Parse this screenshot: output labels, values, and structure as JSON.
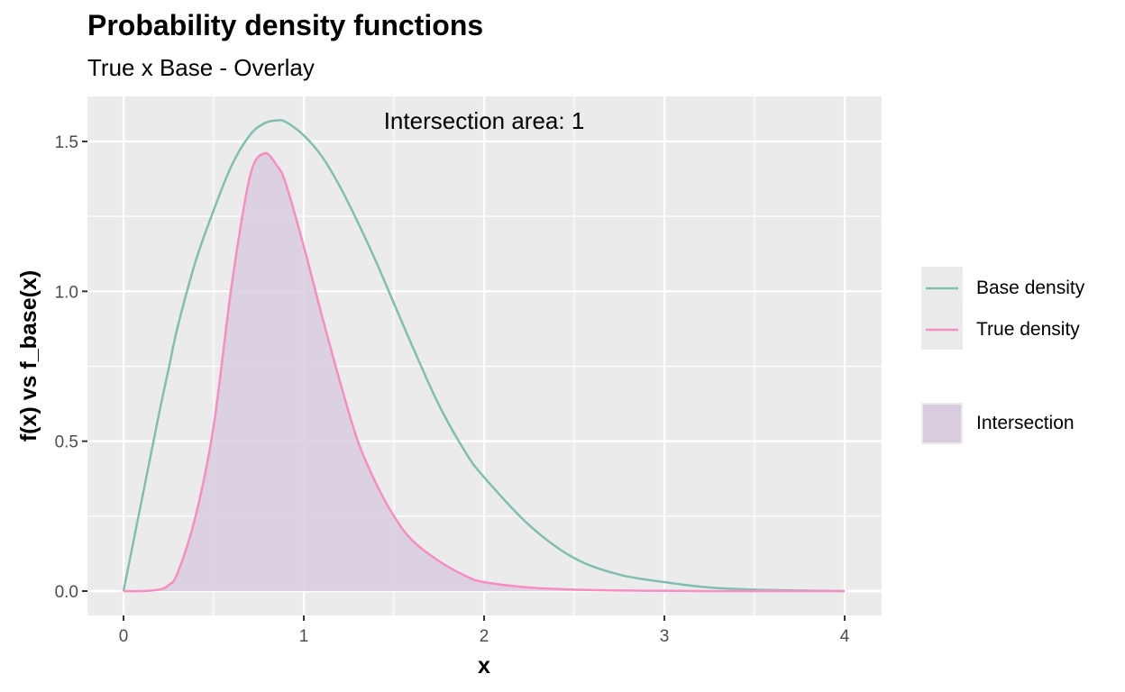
{
  "title": "Probability density functions",
  "subtitle": "True x Base - Overlay",
  "annotation": "Intersection area:  1",
  "legend": {
    "items": [
      {
        "label": "Base density",
        "type": "line",
        "color": "#7fbfb2"
      },
      {
        "label": "True density",
        "type": "line",
        "color": "#f78dc1"
      },
      {
        "label": "Intersection",
        "type": "fill",
        "color": "#d9ccdf"
      }
    ]
  },
  "axes": {
    "xlabel": "x",
    "ylabel": "f(x) vs f_base(x)",
    "xticks": [
      "0",
      "1",
      "2",
      "3",
      "4"
    ],
    "yticks": [
      "0.0",
      "0.5",
      "1.0",
      "1.5"
    ]
  },
  "colors": {
    "panel": "#ebebeb",
    "grid": "#ffffff",
    "base": "#7fbfb2",
    "true": "#f78dc1",
    "intersection": "#d9ccdf"
  },
  "chart_data": {
    "type": "line",
    "title": "Probability density functions",
    "subtitle": "True x Base - Overlay",
    "xlabel": "x",
    "ylabel": "f(x) vs f_base(x)",
    "xlim": [
      -0.2,
      4.2
    ],
    "ylim": [
      -0.08,
      1.65
    ],
    "grid": true,
    "legend_position": "right",
    "annotations": [
      "Intersection area:  1"
    ],
    "x": [
      0,
      0.1,
      0.2,
      0.25,
      0.3,
      0.4,
      0.5,
      0.6,
      0.7,
      0.78,
      0.85,
      0.9,
      1.0,
      1.1,
      1.2,
      1.3,
      1.4,
      1.5,
      1.6,
      1.75,
      1.9,
      2.0,
      2.25,
      2.5,
      2.75,
      3.0,
      3.25,
      3.5,
      3.75,
      4.0
    ],
    "series": [
      {
        "name": "Base density",
        "values": [
          0,
          0.3,
          0.6,
          0.74,
          0.88,
          1.1,
          1.27,
          1.42,
          1.52,
          1.56,
          1.57,
          1.565,
          1.52,
          1.45,
          1.35,
          1.23,
          1.1,
          0.96,
          0.82,
          0.62,
          0.46,
          0.38,
          0.22,
          0.11,
          0.055,
          0.03,
          0.012,
          0.005,
          0.002,
          0
        ]
      },
      {
        "name": "True density",
        "values": [
          0,
          0,
          0.005,
          0.02,
          0.06,
          0.25,
          0.55,
          1.02,
          1.38,
          1.46,
          1.42,
          1.36,
          1.15,
          0.92,
          0.7,
          0.5,
          0.36,
          0.25,
          0.17,
          0.1,
          0.05,
          0.03,
          0.012,
          0.005,
          0.002,
          0.001,
          0,
          0,
          0,
          0
        ]
      },
      {
        "name": "Intersection",
        "type": "area",
        "values": [
          0,
          0,
          0.005,
          0.02,
          0.06,
          0.25,
          0.55,
          1.02,
          1.38,
          1.46,
          1.42,
          1.36,
          1.15,
          0.92,
          0.7,
          0.5,
          0.36,
          0.25,
          0.17,
          0.1,
          0.05,
          0.03,
          0.012,
          0.005,
          0.002,
          0.001,
          0,
          0,
          0,
          0
        ]
      }
    ]
  }
}
